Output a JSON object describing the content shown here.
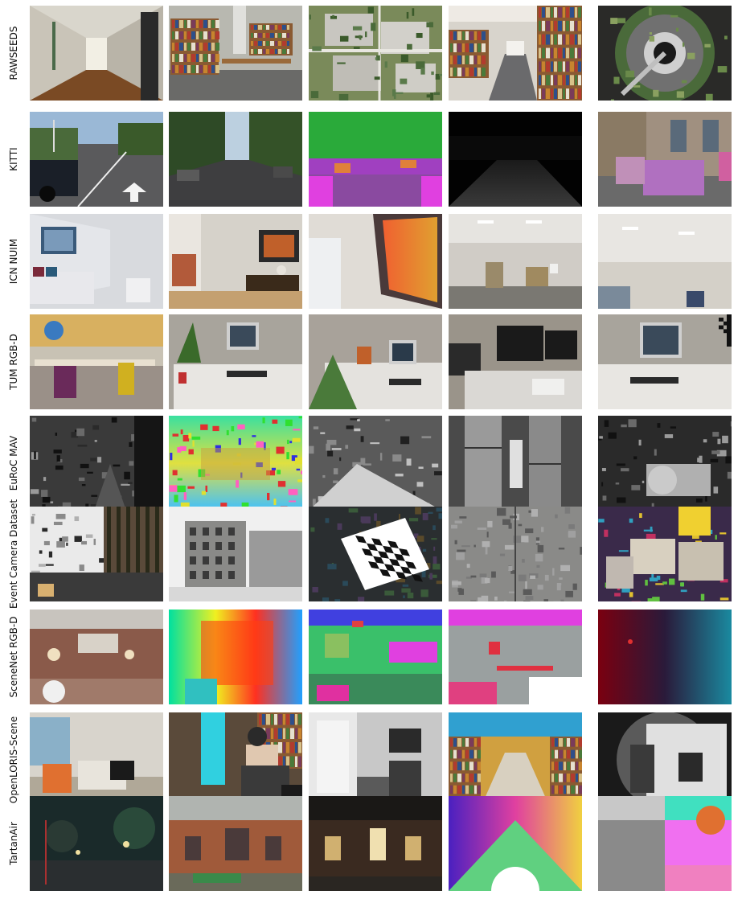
{
  "rows": [
    {
      "label": "RAWSEEDS",
      "tiles": [
        "indoor corridor with doors",
        "library room with bookshelves",
        "aerial view of campus buildings",
        "library aisle with bookshelves",
        "omnidirectional view from robot-mounted camera"
      ]
    },
    {
      "label": "KITTI",
      "tiles": [
        "city street with parked cars and road arrow",
        "tree-lined street",
        "semantic segmentation of street scene",
        "depth map of street scene",
        "street scene with highlighted cars"
      ]
    },
    {
      "label": "ICN NUIM",
      "tiles": [
        "synthetic living room with sofa",
        "living room with window and table",
        "living room with painting, angled view",
        "synthetic office with desks",
        "office ceiling and wall"
      ]
    },
    {
      "label": "TUM RGB-D",
      "tiles": [
        "desk area with toys",
        "office desk with monitor and plant",
        "office desk with plant and toys",
        "office desks with multiple monitors",
        "desk with monitor and checkerboard"
      ]
    },
    {
      "label": "EuRoC MAV",
      "tiles": [
        "grayscale machine hall",
        "colored point cloud of room",
        "grayscale room with debris",
        "grayscale industrial pipes",
        "grayscale machine hall interior"
      ]
    },
    {
      "label": "Event Camera Dataset",
      "tiles": [
        "rock and forest posters",
        "building exterior in snow",
        "checkerboard on textured floor",
        "split rock textures",
        "boxes covered in images on carpet"
      ]
    },
    {
      "label": "SceneNet RGB-D",
      "tiles": [
        "synthetic room render",
        "depth map rainbow",
        "instance segmentation",
        "class segmentation",
        "optical flow / normals"
      ]
    },
    {
      "label": "OpenLORIS-Scene",
      "tiles": [
        "living room with orange chairs",
        "cafe with person on laptop",
        "lab room with robot",
        "supermarket aisle",
        "grayscale fisheye office"
      ]
    },
    {
      "label": "TartanAir",
      "tiles": [
        "night park with lamps",
        "old brick factory",
        "dark brick factory",
        "optical flow color map",
        "depth and segmentation split"
      ]
    }
  ]
}
